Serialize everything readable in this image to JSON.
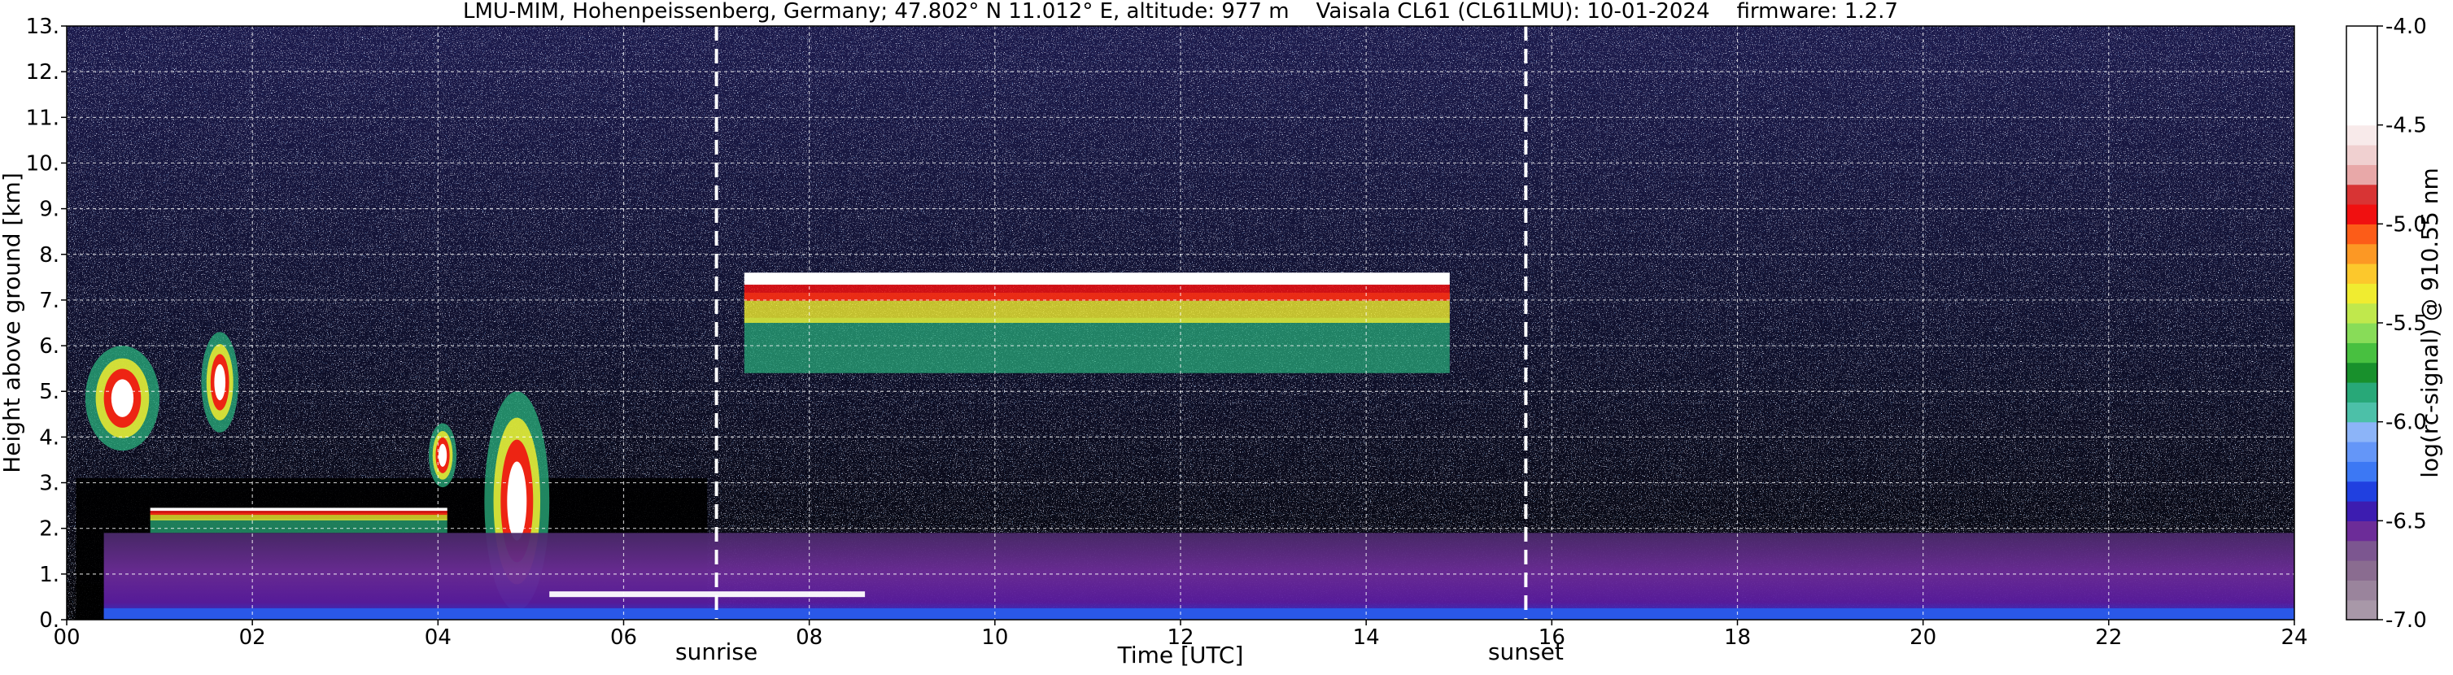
{
  "chart_data": {
    "type": "heatmap",
    "title": "LMU-MIM, Hohenpeissenberg, Germany; 47.802° N 11.012° E, altitude: 977 m    Vaisala CL61 (CL61LMU): 10-01-2024    firmware: 1.2.7",
    "xlabel": "Time [UTC]",
    "ylabel": "Height above ground [km]",
    "xlim": [
      0,
      24
    ],
    "ylim": [
      0,
      13
    ],
    "x_ticks": [
      0,
      2,
      4,
      6,
      8,
      10,
      12,
      14,
      16,
      18,
      20,
      22,
      24
    ],
    "x_tick_labels": [
      "00",
      "02",
      "04",
      "06",
      "08",
      "10",
      "12",
      "14",
      "16",
      "18",
      "20",
      "22",
      "24"
    ],
    "y_ticks": [
      0,
      1,
      2,
      3,
      4,
      5,
      6,
      7,
      8,
      9,
      10,
      11,
      12,
      13
    ],
    "y_tick_labels": [
      "0.",
      "1.",
      "2.",
      "3.",
      "4.",
      "5.",
      "6.",
      "7.",
      "8.",
      "9.",
      "10.",
      "11.",
      "12.",
      "13."
    ],
    "grid": true,
    "annotations": [
      {
        "label": "sunrise",
        "x": 7.0
      },
      {
        "label": "sunset",
        "x": 15.72
      }
    ],
    "colorbar": {
      "label": "log(rc-signal) @ 910.55 nm",
      "range": [
        -7.0,
        -4.0
      ],
      "ticks": [
        -7.0,
        -6.5,
        -6.0,
        -5.5,
        -5.0,
        -4.5,
        -4.0
      ],
      "tick_labels": [
        "-7.0",
        "-6.5",
        "-6.0",
        "-5.5",
        "-5.0",
        "-4.5",
        "-4.0"
      ],
      "colors": [
        "#a898a8",
        "#9a849c",
        "#8a6c90",
        "#7c5690",
        "#6c2c98",
        "#3c1cb0",
        "#2040e0",
        "#3c78f4",
        "#6496f8",
        "#8cb4f8",
        "#4cc0a8",
        "#28a878",
        "#18902c",
        "#48c040",
        "#88dc58",
        "#c0e84c",
        "#f0ec30",
        "#fcc82c",
        "#fc9824",
        "#fc5c18",
        "#f01010",
        "#d83434",
        "#e8a8a8",
        "#f0d0d0",
        "#f8eaea",
        "#ffffff",
        "#ffffff",
        "#ffffff",
        "#ffffff",
        "#ffffff"
      ]
    },
    "features": [
      {
        "kind": "cloud",
        "x": [
          0.2,
          1.0
        ],
        "y": [
          3.7,
          6.0
        ]
      },
      {
        "kind": "cloud",
        "x": [
          1.45,
          1.85
        ],
        "y": [
          4.1,
          6.3
        ]
      },
      {
        "kind": "cloud",
        "x": [
          3.9,
          4.2
        ],
        "y": [
          2.9,
          4.3
        ]
      },
      {
        "kind": "cloud",
        "x": [
          4.5,
          5.2
        ],
        "y": [
          0.2,
          5.0
        ]
      },
      {
        "kind": "cloud_layer",
        "x": [
          0.9,
          4.1
        ],
        "y": [
          1.9,
          2.45
        ]
      },
      {
        "kind": "cloud_layer",
        "x": [
          7.3,
          14.9
        ],
        "y": [
          5.4,
          7.6
        ]
      },
      {
        "kind": "boundary_layer",
        "x": [
          0.4,
          24.0
        ],
        "y": [
          0.0,
          1.9
        ]
      }
    ]
  }
}
